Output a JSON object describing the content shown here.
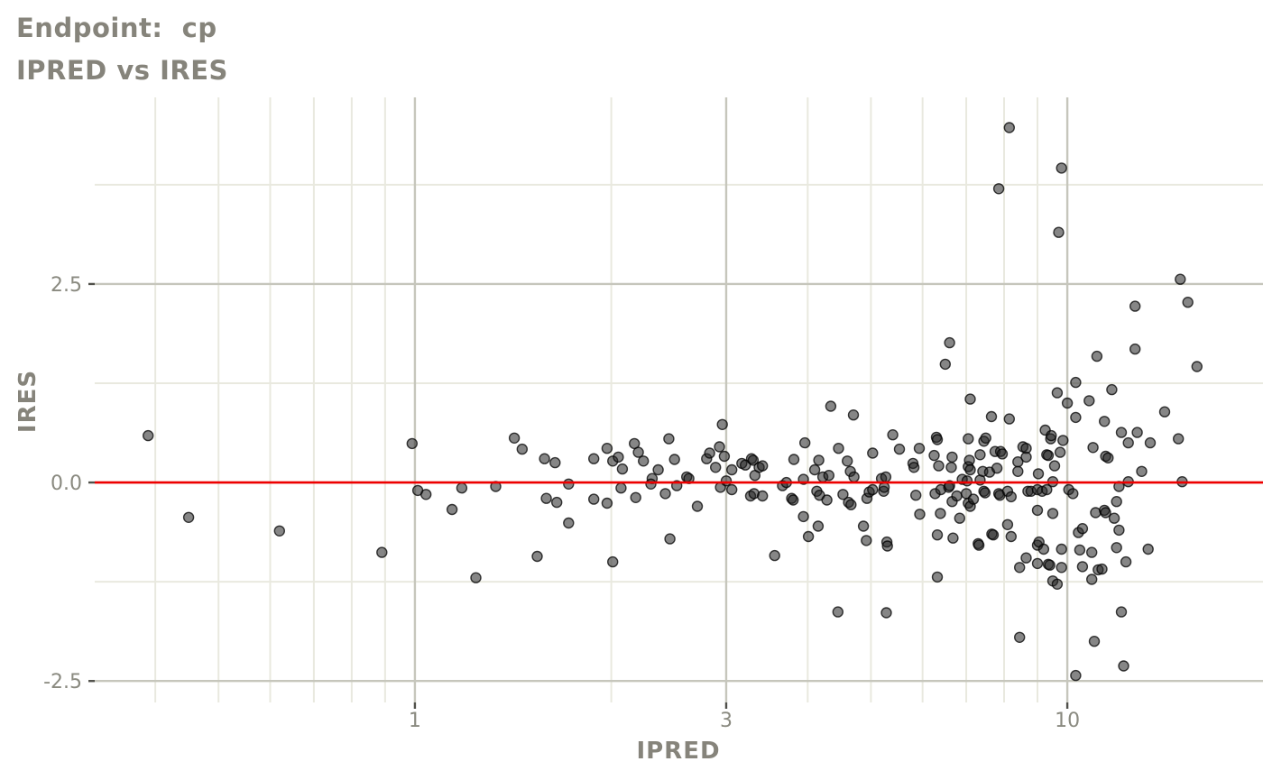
{
  "title": "Endpoint:  cp",
  "subtitle": "IPRED vs IRES",
  "colors": {
    "background": "#ffffff",
    "title_text": "#86847b",
    "axis_text": "#8a8a80",
    "tick_mark": "#50504a",
    "grid_minor": "#e9e9df",
    "grid_major": "#c6c6bc",
    "point_fill": "#222222",
    "point_stroke": "#000000",
    "ref_line": "#ee0000"
  },
  "chart_data": {
    "type": "scatter",
    "title": "Endpoint:  cp",
    "subtitle": "IPRED vs IRES",
    "xlabel": "IPRED",
    "ylabel": "IRES",
    "x_scale": "log10",
    "grid": true,
    "legend": false,
    "xlim": [
      0.323,
      19.95
    ],
    "ylim": [
      -2.77,
      4.85
    ],
    "x_ticks": [
      {
        "value": 1,
        "label": "1"
      },
      {
        "value": 3,
        "label": "3"
      },
      {
        "value": 10,
        "label": "10"
      }
    ],
    "x_minor_gridlines": [
      0.4,
      0.5,
      0.6,
      0.7,
      0.8,
      0.9,
      2,
      4,
      5,
      6,
      7,
      8,
      9
    ],
    "y_ticks": [
      {
        "value": 2.5,
        "label": "2.5"
      },
      {
        "value": 0,
        "label": "0.0"
      },
      {
        "value": -2.5,
        "label": "-2.5"
      }
    ],
    "y_minor_gridlines": [
      3.75,
      1.25,
      -1.25
    ],
    "reference_line": {
      "y": 0,
      "color": "#ee0000"
    },
    "points": [
      [
        0.39,
        0.59
      ],
      [
        0.45,
        -0.44
      ],
      [
        0.62,
        -0.61
      ],
      [
        0.89,
        -0.88
      ],
      [
        0.99,
        0.49
      ],
      [
        1.01,
        -0.1
      ],
      [
        1.04,
        -0.15
      ],
      [
        1.14,
        -0.34
      ],
      [
        1.18,
        -0.07
      ],
      [
        1.24,
        -1.2
      ],
      [
        1.33,
        -0.05
      ],
      [
        1.42,
        0.56
      ],
      [
        1.46,
        0.42
      ],
      [
        1.54,
        -0.93
      ],
      [
        1.58,
        0.3
      ],
      [
        1.59,
        -0.2
      ],
      [
        1.64,
        0.25
      ],
      [
        1.65,
        -0.25
      ],
      [
        1.72,
        -0.02
      ],
      [
        1.72,
        -0.51
      ],
      [
        1.88,
        0.3
      ],
      [
        1.88,
        -0.21
      ],
      [
        1.97,
        0.43
      ],
      [
        1.97,
        -0.26
      ],
      [
        2.01,
        -1.0
      ],
      [
        2.01,
        0.27
      ],
      [
        2.05,
        0.32
      ],
      [
        2.08,
        0.17
      ],
      [
        2.07,
        -0.07
      ],
      [
        2.17,
        0.49
      ],
      [
        2.2,
        0.38
      ],
      [
        2.24,
        0.27
      ],
      [
        2.18,
        -0.19
      ],
      [
        2.31,
        0.05
      ],
      [
        2.3,
        -0.02
      ],
      [
        2.36,
        0.16
      ],
      [
        2.45,
        0.55
      ],
      [
        2.46,
        -0.71
      ],
      [
        2.42,
        -0.14
      ],
      [
        2.5,
        0.29
      ],
      [
        2.52,
        -0.04
      ],
      [
        2.61,
        0.07
      ],
      [
        2.63,
        0.05
      ],
      [
        2.71,
        -0.3
      ],
      [
        2.8,
        0.3
      ],
      [
        2.83,
        0.37
      ],
      [
        2.89,
        0.19
      ],
      [
        2.96,
        0.73
      ],
      [
        2.93,
        0.45
      ],
      [
        2.98,
        0.33
      ],
      [
        2.94,
        -0.06
      ],
      [
        3.0,
        0.02
      ],
      [
        3.06,
        0.16
      ],
      [
        3.06,
        -0.09
      ],
      [
        3.17,
        0.24
      ],
      [
        3.21,
        0.22
      ],
      [
        3.28,
        0.3
      ],
      [
        3.3,
        0.28
      ],
      [
        3.32,
        0.09
      ],
      [
        3.37,
        0.19
      ],
      [
        3.41,
        0.21
      ],
      [
        3.27,
        -0.17
      ],
      [
        3.31,
        -0.14
      ],
      [
        3.41,
        -0.17
      ],
      [
        3.56,
        -0.92
      ],
      [
        3.66,
        -0.04
      ],
      [
        3.71,
        0.0
      ],
      [
        3.78,
        -0.2
      ],
      [
        3.8,
        -0.22
      ],
      [
        3.81,
        0.29
      ],
      [
        3.94,
        0.04
      ],
      [
        3.94,
        -0.43
      ],
      [
        3.96,
        0.5
      ],
      [
        4.01,
        -0.68
      ],
      [
        4.1,
        0.16
      ],
      [
        4.13,
        -0.11
      ],
      [
        4.15,
        -0.55
      ],
      [
        4.16,
        0.28
      ],
      [
        4.17,
        -0.16
      ],
      [
        4.22,
        0.07
      ],
      [
        4.28,
        -0.22
      ],
      [
        4.31,
        0.09
      ],
      [
        4.34,
        0.96
      ],
      [
        4.45,
        -1.63
      ],
      [
        4.46,
        0.43
      ],
      [
        4.53,
        -0.15
      ],
      [
        4.6,
        0.27
      ],
      [
        4.62,
        -0.25
      ],
      [
        4.65,
        0.14
      ],
      [
        4.66,
        -0.28
      ],
      [
        4.7,
        0.85
      ],
      [
        4.71,
        0.07
      ],
      [
        4.87,
        -0.55
      ],
      [
        4.92,
        -0.73
      ],
      [
        4.93,
        -0.2
      ],
      [
        4.97,
        -0.12
      ],
      [
        5.03,
        0.37
      ],
      [
        5.03,
        -0.09
      ],
      [
        5.19,
        0.05
      ],
      [
        5.23,
        -0.11
      ],
      [
        5.24,
        -0.06
      ],
      [
        5.27,
        0.07
      ],
      [
        5.28,
        -1.64
      ],
      [
        5.29,
        -0.75
      ],
      [
        5.3,
        -0.8
      ],
      [
        5.4,
        0.6
      ],
      [
        5.53,
        0.42
      ],
      [
        5.8,
        0.24
      ],
      [
        5.82,
        0.19
      ],
      [
        5.86,
        -0.16
      ],
      [
        5.93,
        0.43
      ],
      [
        5.94,
        -0.4
      ],
      [
        6.25,
        0.34
      ],
      [
        6.27,
        -0.14
      ],
      [
        6.3,
        0.57
      ],
      [
        6.32,
        0.54
      ],
      [
        6.32,
        -0.66
      ],
      [
        6.32,
        -1.19
      ],
      [
        6.35,
        0.21
      ],
      [
        6.39,
        -0.39
      ],
      [
        6.4,
        -0.09
      ],
      [
        6.5,
        1.49
      ],
      [
        6.58,
        -0.06
      ],
      [
        6.6,
        1.76
      ],
      [
        6.6,
        -0.04
      ],
      [
        6.64,
        0.19
      ],
      [
        6.66,
        0.32
      ],
      [
        6.66,
        -0.24
      ],
      [
        6.68,
        -0.7
      ],
      [
        6.77,
        -0.17
      ],
      [
        6.84,
        -0.45
      ],
      [
        6.9,
        0.04
      ],
      [
        7.0,
        -0.14
      ],
      [
        7.02,
        0.02
      ],
      [
        7.05,
        0.55
      ],
      [
        7.05,
        0.2
      ],
      [
        7.05,
        -0.26
      ],
      [
        7.08,
        0.28
      ],
      [
        7.1,
        1.05
      ],
      [
        7.1,
        0.16
      ],
      [
        7.1,
        -0.3
      ],
      [
        7.18,
        -0.21
      ],
      [
        7.3,
        -0.77
      ],
      [
        7.32,
        -0.79
      ],
      [
        7.35,
        0.35
      ],
      [
        7.35,
        0.03
      ],
      [
        7.42,
        0.14
      ],
      [
        7.45,
        0.52
      ],
      [
        7.45,
        -0.11
      ],
      [
        7.48,
        -0.13
      ],
      [
        7.5,
        0.56
      ],
      [
        7.6,
        0.13
      ],
      [
        7.65,
        0.83
      ],
      [
        7.66,
        -0.65
      ],
      [
        7.7,
        -0.66
      ],
      [
        7.75,
        0.39
      ],
      [
        7.8,
        0.18
      ],
      [
        7.85,
        3.7
      ],
      [
        7.85,
        -0.14
      ],
      [
        7.88,
        -0.16
      ],
      [
        7.9,
        0.39
      ],
      [
        7.95,
        0.36
      ],
      [
        8.1,
        -0.53
      ],
      [
        8.1,
        -0.11
      ],
      [
        8.15,
        4.47
      ],
      [
        8.15,
        0.8
      ],
      [
        8.2,
        -0.18
      ],
      [
        8.2,
        -0.68
      ],
      [
        8.4,
        0.26
      ],
      [
        8.4,
        0.14
      ],
      [
        8.45,
        -1.07
      ],
      [
        8.45,
        -1.95
      ],
      [
        8.55,
        0.45
      ],
      [
        8.65,
        0.43
      ],
      [
        8.65,
        0.32
      ],
      [
        8.65,
        -0.95
      ],
      [
        8.7,
        -0.11
      ],
      [
        8.8,
        -0.11
      ],
      [
        9.0,
        -0.09
      ],
      [
        9.0,
        -0.35
      ],
      [
        9.0,
        -0.79
      ],
      [
        9.0,
        -1.02
      ],
      [
        9.03,
        0.11
      ],
      [
        9.05,
        -0.75
      ],
      [
        9.15,
        -0.11
      ],
      [
        9.2,
        -0.84
      ],
      [
        9.25,
        0.66
      ],
      [
        9.3,
        0.35
      ],
      [
        9.3,
        -0.09
      ],
      [
        9.35,
        0.34
      ],
      [
        9.35,
        -1.03
      ],
      [
        9.4,
        -1.04
      ],
      [
        9.43,
        0.55
      ],
      [
        9.45,
        0.59
      ],
      [
        9.5,
        0.01
      ],
      [
        9.5,
        -0.39
      ],
      [
        9.5,
        -1.24
      ],
      [
        9.56,
        0.21
      ],
      [
        9.65,
        1.13
      ],
      [
        9.65,
        -1.28
      ],
      [
        9.7,
        3.15
      ],
      [
        9.75,
        0.38
      ],
      [
        9.8,
        3.96
      ],
      [
        9.8,
        -0.84
      ],
      [
        9.8,
        -1.07
      ],
      [
        9.85,
        0.53
      ],
      [
        10.0,
        1.0
      ],
      [
        10.05,
        -0.09
      ],
      [
        10.2,
        -0.14
      ],
      [
        10.3,
        1.26
      ],
      [
        10.3,
        0.82
      ],
      [
        10.3,
        -2.43
      ],
      [
        10.4,
        -0.63
      ],
      [
        10.45,
        -0.85
      ],
      [
        10.55,
        -0.58
      ],
      [
        10.55,
        -1.06
      ],
      [
        10.8,
        1.03
      ],
      [
        10.9,
        -0.88
      ],
      [
        10.9,
        -1.22
      ],
      [
        10.95,
        0.44
      ],
      [
        11.0,
        -2.0
      ],
      [
        11.05,
        -0.38
      ],
      [
        11.1,
        1.59
      ],
      [
        11.15,
        -1.1
      ],
      [
        11.3,
        -1.09
      ],
      [
        11.4,
        0.77
      ],
      [
        11.4,
        -0.35
      ],
      [
        11.45,
        0.33
      ],
      [
        11.45,
        -0.38
      ],
      [
        11.55,
        0.31
      ],
      [
        11.7,
        1.17
      ],
      [
        11.8,
        -0.45
      ],
      [
        11.9,
        -0.24
      ],
      [
        11.9,
        -0.82
      ],
      [
        12.0,
        -0.05
      ],
      [
        12.0,
        -0.6
      ],
      [
        12.1,
        0.63
      ],
      [
        12.1,
        -1.63
      ],
      [
        12.2,
        -2.31
      ],
      [
        12.3,
        -1.0
      ],
      [
        12.4,
        0.5
      ],
      [
        12.4,
        0.01
      ],
      [
        12.7,
        2.22
      ],
      [
        12.7,
        1.68
      ],
      [
        12.8,
        0.63
      ],
      [
        13.0,
        0.14
      ],
      [
        13.3,
        -0.84
      ],
      [
        13.4,
        0.5
      ],
      [
        14.1,
        0.89
      ],
      [
        14.8,
        0.55
      ],
      [
        14.9,
        2.56
      ],
      [
        15.0,
        0.01
      ],
      [
        15.3,
        2.27
      ],
      [
        15.8,
        1.46
      ]
    ]
  }
}
